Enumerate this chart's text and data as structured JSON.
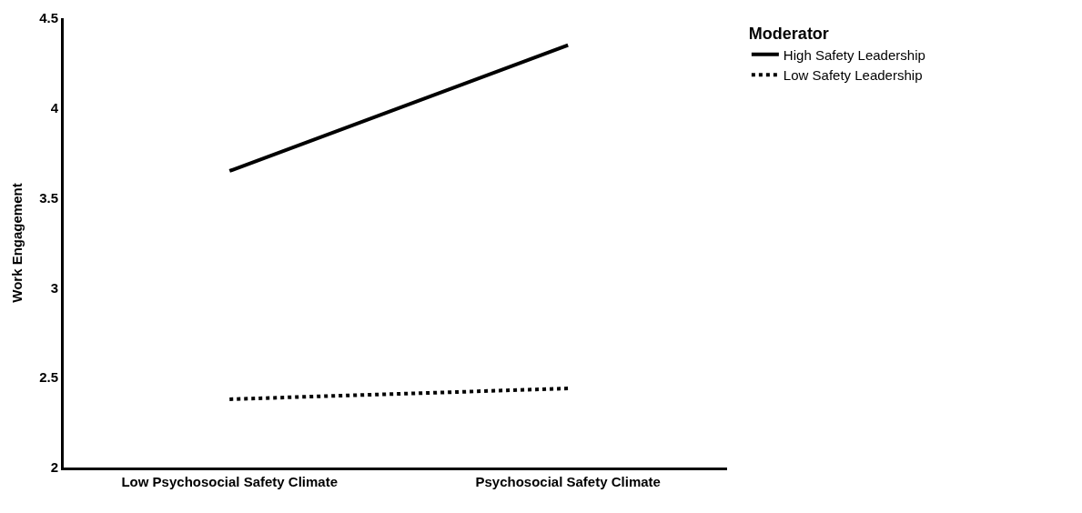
{
  "chart_data": {
    "type": "line",
    "ylabel": "Work Engagement",
    "legend_title": "Moderator",
    "categories": [
      "Low Psychosocial Safety Climate",
      "Psychosocial Safety Climate"
    ],
    "series": [
      {
        "name": "High Safety Leadership",
        "color": "#000000",
        "line_style": "solid",
        "values": [
          3.65,
          4.35
        ]
      },
      {
        "name": "Low Safety Leadership",
        "color": "#000000",
        "line_style": "dotted",
        "values": [
          2.38,
          2.44
        ]
      }
    ],
    "ylim": [
      2,
      4.5
    ],
    "yticks": [
      2,
      2.5,
      3,
      3.5,
      4,
      4.5
    ],
    "legend": "top right",
    "marker": "none"
  }
}
